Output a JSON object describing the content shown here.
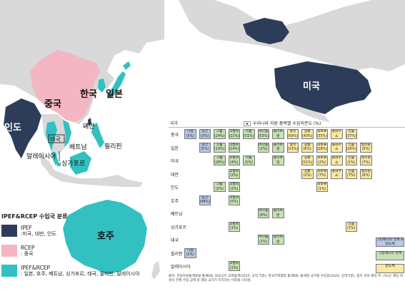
{
  "map_labels": {
    "korea": "한국",
    "japan": "일본",
    "china": "중국",
    "india": "인도",
    "taiwan": "대만",
    "thailand": "태국",
    "vietnam": "베트남",
    "philippines": "필리핀",
    "malaysia": "말레이시아",
    "singapore": "싱가포르",
    "australia": "호주",
    "usa": "미국"
  },
  "legend": {
    "title": "IPEF&RCEP 수입국 분류",
    "items": [
      {
        "name": "IPEF",
        "desc": ":미국, 대만, 인도",
        "color": "#2d3d59"
      },
      {
        "name": "RCEP",
        "desc": ": 중국",
        "color": "#f4b6c2"
      },
      {
        "name": "IPEF&RCEP",
        "desc": ": 일본, 호주, 베트남, 싱가포르, 태국, 필리핀, 말레이시아",
        "color": "#33c0c0"
      }
    ]
  },
  "table": {
    "col_country": "국가",
    "col_title": "우리나라 자원 품목별 수입의존도 (%)",
    "rows": [
      {
        "country": "중국",
        "cells": [
          {
            "slot": 0,
            "name": "니켈",
            "value": "(3%)",
            "color": "blue"
          },
          {
            "slot": 1,
            "name": "망간",
            "value": "(3%)",
            "color": "blue"
          },
          {
            "slot": 2,
            "name": "크롬",
            "value": "(24%)",
            "color": "green"
          },
          {
            "slot": 3,
            "name": "코발트",
            "value": "(22%)",
            "color": "green"
          },
          {
            "slot": 4,
            "name": "리튬",
            "value": "(51%)",
            "color": "green"
          },
          {
            "slot": 5,
            "name": "바나듐",
            "value": "(53%)",
            "color": "green"
          },
          {
            "slot": 6,
            "name": "몰리브덴",
            "value": "(4%)",
            "color": "green"
          },
          {
            "slot": 7,
            "name": "형석",
            "value": "(59%)",
            "color": "yellow"
          },
          {
            "slot": 8,
            "name": "갈륨",
            "value": "(43%)",
            "color": "yellow"
          },
          {
            "slot": 9,
            "name": "희토류",
            "value": "(35%)",
            "color": "yellow"
          },
          {
            "slot": 10,
            "name": "불화수소",
            "value": "(75%)",
            "color": "yellow"
          },
          {
            "slot": 11,
            "name": "인듐",
            "value": "(37%)",
            "color": "yellow"
          }
        ]
      },
      {
        "country": "일본",
        "cells": [
          {
            "slot": 1,
            "name": "망간",
            "value": "(5%)",
            "color": "blue"
          },
          {
            "slot": 2,
            "name": "크롬",
            "value": "(10%)",
            "color": "green"
          },
          {
            "slot": 3,
            "name": "코발트",
            "value": "(14%)",
            "color": "green"
          },
          {
            "slot": 5,
            "name": "바나듐",
            "value": "(2%)",
            "color": "green"
          },
          {
            "slot": 6,
            "name": "몰리브덴",
            "value": "(5%)",
            "color": "green"
          },
          {
            "slot": 7,
            "name": "형석",
            "value": "(23%)",
            "color": "yellow"
          },
          {
            "slot": 8,
            "name": "갈륨",
            "value": "(6%)",
            "color": "yellow"
          },
          {
            "slot": 9,
            "name": "희토류",
            "value": "(28%)",
            "color": "yellow"
          },
          {
            "slot": 10,
            "name": "불화수소",
            "value": "(13%)",
            "color": "yellow"
          },
          {
            "slot": 11,
            "name": "인듐",
            "value": "(26%)",
            "color": "yellow"
          },
          {
            "slot": 12,
            "name": "필리핀",
            "value": "(5%)",
            "color": "yellow"
          }
        ]
      },
      {
        "country": "미국",
        "cells": [
          {
            "slot": 2,
            "name": "크롬",
            "value": "(28%)",
            "color": "green"
          },
          {
            "slot": 3,
            "name": "코발트",
            "value": "(4%)",
            "color": "green"
          },
          {
            "slot": 4,
            "name": "리튬",
            "value": "(1%)",
            "color": "green"
          },
          {
            "slot": 6,
            "name": "몰리브덴",
            "value": "(13%)",
            "color": "green"
          },
          {
            "slot": 8,
            "name": "갈륨",
            "value": "(51%)",
            "color": "yellow"
          },
          {
            "slot": 9,
            "name": "희토류",
            "value": "(2%)",
            "color": "yellow"
          },
          {
            "slot": 10,
            "name": "불화수소",
            "value": "(2%)",
            "color": "yellow"
          },
          {
            "slot": 11,
            "name": "인듐",
            "value": "(1%)",
            "color": "yellow"
          },
          {
            "slot": 12,
            "name": "필리핀",
            "value": "(7%)",
            "color": "yellow"
          }
        ]
      },
      {
        "country": "대만",
        "cells": [
          {
            "slot": 3,
            "name": "코발트",
            "value": "(2%)",
            "color": "green"
          },
          {
            "slot": 8,
            "name": "갈륨",
            "value": "(2%)",
            "color": "yellow"
          },
          {
            "slot": 9,
            "name": "희토류",
            "value": "(7%)",
            "color": "yellow"
          },
          {
            "slot": 10,
            "name": "불화수소",
            "value": "(11%)",
            "color": "yellow"
          },
          {
            "slot": 11,
            "name": "인듐",
            "value": "(7%)",
            "color": "yellow"
          },
          {
            "slot": 12,
            "name": "필리핀",
            "value": "(6%)",
            "color": "yellow"
          }
        ]
      },
      {
        "country": "인도",
        "cells": [
          {
            "slot": 2,
            "name": "크롬",
            "value": "(2%)",
            "color": "green"
          },
          {
            "slot": 3,
            "name": "코발트",
            "value": "(2%)",
            "color": "green"
          },
          {
            "slot": 9,
            "name": "희토류",
            "value": "(1%)",
            "color": "yellow"
          }
        ]
      },
      {
        "country": "호주",
        "cells": [
          {
            "slot": 1,
            "name": "망간",
            "value": "(48%)",
            "color": "blue"
          },
          {
            "slot": 3,
            "name": "코발트",
            "value": "(5%)",
            "color": "green"
          }
        ]
      },
      {
        "country": "베트남",
        "cells": [
          {
            "slot": 5,
            "name": "바나듐",
            "value": "(6%)",
            "color": "green"
          },
          {
            "slot": 6,
            "name": "몰리브덴",
            "value": "(3%)",
            "color": "green"
          }
        ]
      },
      {
        "country": "싱가포르",
        "cells": [
          {
            "slot": 3,
            "name": "코발트",
            "value": "(1%)",
            "color": "green"
          },
          {
            "slot": 11,
            "name": "인듐",
            "value": "(1%)",
            "color": "yellow"
          }
        ]
      },
      {
        "country": "태국",
        "cells": [
          {
            "slot": 5,
            "name": "바나듐",
            "value": "(1%)",
            "color": "green"
          },
          {
            "slot": 6,
            "name": "몰리브덴",
            "value": "(1%)",
            "color": "green"
          }
        ]
      },
      {
        "country": "필리핀",
        "cells": [
          {
            "slot": 0,
            "name": "니켈",
            "value": "(1%)",
            "color": "blue"
          }
        ]
      },
      {
        "country": "말레이시아",
        "cells": [
          {
            "slot": 3,
            "name": "코발트",
            "value": "(1%)",
            "color": "green"
          }
        ]
      }
    ],
    "key": [
      {
        "label": "그린에너지 연계 & 반도체",
        "color": "blue"
      },
      {
        "label": "그린에너지 연계",
        "color": "green"
      },
      {
        "label": "반도체",
        "color": "yellow"
      }
    ]
  },
  "source": "출처: 관광자원통계포털 통계DB, 외국공조 교역통계(2020, 공역 기준), 한국무역협회 통계DB, 통계청 국가별 수입입(2020, 공역기준), 참조 저자 재작 주: (%)는 해당 자원의 전체 수입 금액 중 해당 국가가 차지하는 비중을 나타냄."
}
